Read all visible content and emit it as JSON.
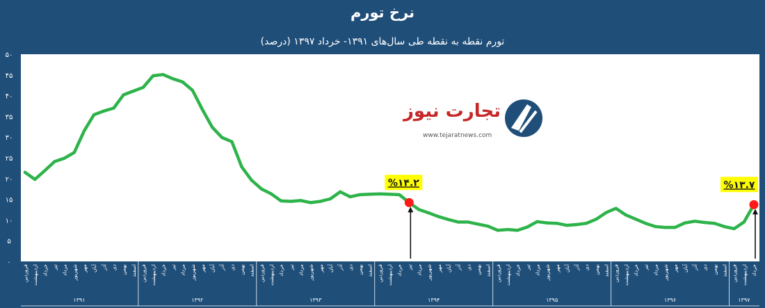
{
  "chart_data": {
    "type": "line",
    "title": "نرخ تورم",
    "subtitle": "تورم نقطه به نقطه طی سال‌های ۱۳۹۱- خرداد ۱۳۹۷ (درصد)",
    "ylim": [
      0,
      50
    ],
    "yticks": [
      "۰",
      "۵",
      "۱۰",
      "۱۵",
      "۲۰",
      "۲۵",
      "۳۰",
      "۳۵",
      "۴۰",
      "۴۵",
      "۵۰"
    ],
    "grid": false,
    "months": [
      "فروردین",
      "اردیبهشت",
      "خرداد",
      "تیر",
      "مرداد",
      "شهریور",
      "مهر",
      "آبان",
      "آذر",
      "دی",
      "بهمن",
      "اسفند"
    ],
    "years": [
      "۱۳۹۱",
      "۱۳۹۲",
      "۱۳۹۳",
      "۱۳۹۴",
      "۱۳۹۵",
      "۱۳۹۶",
      "۱۳۹۷"
    ],
    "series": [
      {
        "values": [
          21.5,
          19.8,
          21.9,
          24.1,
          24.9,
          26.3,
          31.5,
          35.4,
          36.3,
          37.0,
          40.2,
          41.1,
          42.0,
          44.8,
          45.1,
          44.1,
          43.3,
          41.3,
          36.7,
          32.4,
          29.9,
          28.9,
          22.8,
          19.6,
          17.5,
          16.3,
          14.6,
          14.5,
          14.7,
          14.2,
          14.5,
          15.1,
          16.8,
          15.6,
          16.1,
          16.2,
          16.3,
          16.2,
          16.1,
          14.2,
          12.5,
          11.7,
          10.8,
          10.1,
          9.5,
          9.5,
          9.0,
          8.5,
          7.5,
          7.7,
          7.5,
          8.3,
          9.6,
          9.3,
          9.2,
          8.7,
          8.9,
          9.2,
          10.2,
          11.8,
          12.8,
          11.2,
          10.2,
          9.2,
          8.4,
          8.2,
          8.2,
          9.3,
          9.7,
          9.4,
          9.2,
          8.4,
          7.9,
          9.5,
          13.7
        ]
      }
    ],
    "annotations": [
      {
        "label": "%۱۴.۲",
        "index": 39,
        "value": 14.2
      },
      {
        "label": "%۱۳.۷",
        "index": 74,
        "value": 13.7
      }
    ]
  },
  "logo": {
    "name": "تجارت نیوز",
    "url": "www.tejaratnews.com"
  },
  "colors": {
    "background": "#1f4e79",
    "plot": "#ffffff",
    "line": "#2db34a",
    "marker": "#ff1a1a",
    "callout": "#ffff00"
  }
}
